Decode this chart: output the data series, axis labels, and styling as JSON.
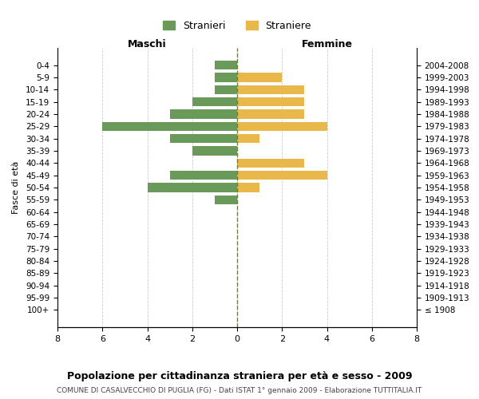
{
  "age_groups": [
    "100+",
    "95-99",
    "90-94",
    "85-89",
    "80-84",
    "75-79",
    "70-74",
    "65-69",
    "60-64",
    "55-59",
    "50-54",
    "45-49",
    "40-44",
    "35-39",
    "30-34",
    "25-29",
    "20-24",
    "15-19",
    "10-14",
    "5-9",
    "0-4"
  ],
  "birth_years": [
    "≤ 1908",
    "1909-1913",
    "1914-1918",
    "1919-1923",
    "1924-1928",
    "1929-1933",
    "1934-1938",
    "1939-1943",
    "1944-1948",
    "1949-1953",
    "1954-1958",
    "1959-1963",
    "1964-1968",
    "1969-1973",
    "1974-1978",
    "1979-1983",
    "1984-1988",
    "1989-1993",
    "1994-1998",
    "1999-2003",
    "2004-2008"
  ],
  "maschi": [
    0,
    0,
    0,
    0,
    0,
    0,
    0,
    0,
    0,
    1,
    4,
    3,
    0,
    2,
    3,
    6,
    3,
    2,
    1,
    1,
    1
  ],
  "femmine": [
    0,
    0,
    0,
    0,
    0,
    0,
    0,
    0,
    0,
    0,
    1,
    4,
    3,
    0,
    1,
    4,
    3,
    3,
    3,
    2,
    0
  ],
  "maschi_color": "#6a9a5a",
  "femmine_color": "#e8b84b",
  "title": "Popolazione per cittadinanza straniera per età e sesso - 2009",
  "subtitle": "COMUNE DI CASALVECCHIO DI PUGLIA (FG) - Dati ISTAT 1° gennaio 2009 - Elaborazione TUTTITALIA.IT",
  "ylabel_left": "Fasce di età",
  "xlabel_left": "Maschi",
  "xlabel_right": "Femmine",
  "legend_stranieri": "Stranieri",
  "legend_straniere": "Straniere",
  "xlim": 8,
  "background_color": "#ffffff",
  "grid_color": "#cccccc"
}
